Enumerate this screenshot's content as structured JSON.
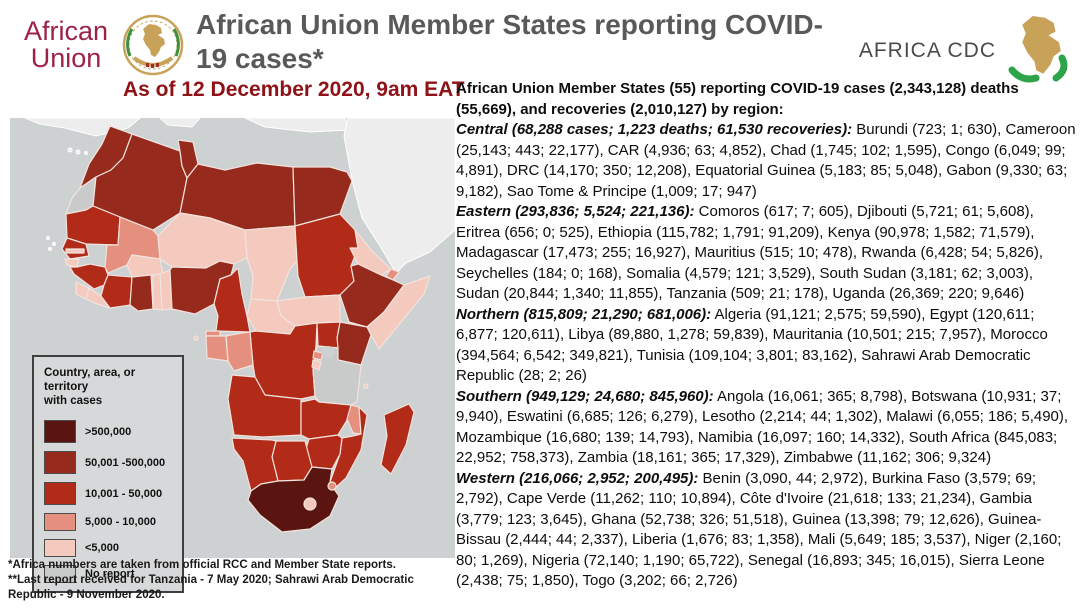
{
  "theme": {
    "title_gray": "#58595b",
    "subtitle_red": "#8e1216",
    "au_maroon": "#9e2146",
    "logo_gold": "#c8a258",
    "logo_green": "#2da44a",
    "map_ocean": "#cdd1d2",
    "map_other_land": "#ecedec",
    "map_border": "#f2e3dd"
  },
  "header": {
    "au_logo_line1": "African",
    "au_logo_line2": "Union",
    "title": "African Union Member States reporting COVID-19 cases*",
    "subtitle": "As of 12 December 2020, 9am EAT",
    "cdc_logo_text": "AFRICA CDC"
  },
  "right_panel": {
    "intro": "African Union Member States (55) reporting COVID-19 cases (2,343,128) deaths (55,669), and recoveries (2,010,127) by region:",
    "regions": [
      {
        "label": "Central (68,288 cases; 1,223 deaths; 61,530 recoveries):",
        "countries": "Burundi (723; 1; 630), Cameroon (25,143; 443; 22,177), CAR (4,936; 63; 4,852), Chad (1,745; 102; 1,595), Congo (6,049; 99; 4,891), DRC (14,170; 350; 12,208), Equatorial Guinea (5,183; 85; 5,048), Gabon (9,330; 63; 9,182), Sao Tome & Principe (1,009; 17; 947)"
      },
      {
        "label": "Eastern (293,836; 5,524; 221,136):",
        "countries": "Comoros (617; 7; 605), Djibouti (5,721; 61; 5,608), Eritrea (656; 0; 525), Ethiopia (115,782; 1,791; 91,209), Kenya (90,978; 1,582; 71,579), Madagascar (17,473; 255; 16,927), Mauritius (515; 10; 478), Rwanda (6,428; 54; 5,826), Seychelles (184; 0; 168), Somalia (4,579; 121; 3,529), South Sudan (3,181; 62; 3,003), Sudan (20,844; 1,340; 11,855), Tanzania (509; 21; 178), Uganda (26,369; 220; 9,646)"
      },
      {
        "label": "Northern (815,809; 21,290; 681,006):",
        "countries": "Algeria (91,121; 2,575; 59,590), Egypt (120,611; 6,877; 120,611), Libya (89,880, 1,278; 59,839), Mauritania (10,501; 215; 7,957), Morocco (394,564; 6,542; 349,821), Tunisia (109,104; 3,801; 83,162), Sahrawi Arab Democratic Republic (28; 2; 26)"
      },
      {
        "label": "Southern (949,129; 24,680; 845,960):",
        "countries": "Angola (16,061; 365; 8,798), Botswana (10,931; 37; 9,940), Eswatini (6,685; 126; 6,279), Lesotho (2,214; 44; 1,302), Malawi (6,055; 186; 5,490), Mozambique (16,680; 139; 14,793), Namibia (16,097; 160; 14,332), South Africa (845,083; 22,952; 758,373), Zambia (18,161; 365; 17,329), Zimbabwe (11,162; 306; 9,324)"
      },
      {
        "label": "Western (216,066; 2,952; 200,495):",
        "countries": "Benin (3,090, 44; 2,972), Burkina Faso (3,579; 69; 2,792), Cape Verde (11,262; 110; 10,894), Côte d'Ivoire (21,618; 133; 21,234), Gambia (3,779; 123; 3,645), Ghana (52,738; 326; 51,518), Guinea (13,398; 79; 12,626), Guinea-Bissau (2,444; 44; 2,337), Liberia (1,676; 83; 1,358), Mali (5,649; 185; 3,537), Niger (2,160; 80; 1,269), Nigeria (72,140; 1,190; 65,722), Senegal (16,893; 345; 16,015), Sierra Leone (2,438; 75; 1,850), Togo (3,202; 66; 2,726)"
      }
    ]
  },
  "map": {
    "legend": {
      "title_line1": "Country, area, or territory",
      "title_line2": "with cases",
      "items": [
        {
          "label": ">500,000",
          "category": "cat1",
          "color": "#5b1510"
        },
        {
          "label": "50,001 -500,000",
          "category": "cat2",
          "color": "#962b1d"
        },
        {
          "label": "10,001 - 50,000",
          "category": "cat3",
          "color": "#b22a18"
        },
        {
          "label": "5,000 - 10,000",
          "category": "cat4",
          "color": "#e5907e"
        },
        {
          "label": "<5,000",
          "category": "cat5",
          "color": "#f4cabf"
        },
        {
          "label": "No report",
          "category": "none",
          "color": "#c9cbca"
        }
      ]
    },
    "countries": [
      {
        "id": "morocco",
        "category": "cat2"
      },
      {
        "id": "western-sahara",
        "category": "none"
      },
      {
        "id": "algeria",
        "category": "cat2"
      },
      {
        "id": "tunisia",
        "category": "cat2"
      },
      {
        "id": "libya",
        "category": "cat2"
      },
      {
        "id": "egypt",
        "category": "cat2"
      },
      {
        "id": "mauritania",
        "category": "cat3"
      },
      {
        "id": "senegal",
        "category": "cat3"
      },
      {
        "id": "gambia",
        "category": "cat5"
      },
      {
        "id": "guinea-bissau",
        "category": "cat5"
      },
      {
        "id": "guinea",
        "category": "cat3"
      },
      {
        "id": "sierra-leone",
        "category": "cat5"
      },
      {
        "id": "liberia",
        "category": "cat5"
      },
      {
        "id": "mali",
        "category": "cat4"
      },
      {
        "id": "burkina-faso",
        "category": "cat5"
      },
      {
        "id": "cote-divoire",
        "category": "cat3"
      },
      {
        "id": "ghana",
        "category": "cat2"
      },
      {
        "id": "togo",
        "category": "cat5"
      },
      {
        "id": "benin",
        "category": "cat5"
      },
      {
        "id": "niger",
        "category": "cat5"
      },
      {
        "id": "nigeria",
        "category": "cat2"
      },
      {
        "id": "chad",
        "category": "cat5"
      },
      {
        "id": "sudan",
        "category": "cat3"
      },
      {
        "id": "eritrea",
        "category": "cat5"
      },
      {
        "id": "djibouti",
        "category": "cat4"
      },
      {
        "id": "ethiopia",
        "category": "cat2"
      },
      {
        "id": "somalia",
        "category": "cat5"
      },
      {
        "id": "kenya",
        "category": "cat2"
      },
      {
        "id": "uganda",
        "category": "cat3"
      },
      {
        "id": "south-sudan",
        "category": "cat5"
      },
      {
        "id": "car",
        "category": "cat5"
      },
      {
        "id": "cameroon",
        "category": "cat3"
      },
      {
        "id": "equatorial-guinea",
        "category": "cat4"
      },
      {
        "id": "gabon",
        "category": "cat4"
      },
      {
        "id": "congo",
        "category": "cat4"
      },
      {
        "id": "drc",
        "category": "cat3"
      },
      {
        "id": "rwanda",
        "category": "cat4"
      },
      {
        "id": "burundi",
        "category": "cat5"
      },
      {
        "id": "tanzania",
        "category": "none"
      },
      {
        "id": "angola",
        "category": "cat3"
      },
      {
        "id": "zambia",
        "category": "cat3"
      },
      {
        "id": "malawi",
        "category": "cat4"
      },
      {
        "id": "mozambique",
        "category": "cat3"
      },
      {
        "id": "zimbabwe",
        "category": "cat3"
      },
      {
        "id": "botswana",
        "category": "cat3"
      },
      {
        "id": "namibia",
        "category": "cat3"
      },
      {
        "id": "south-africa",
        "category": "cat1"
      },
      {
        "id": "lesotho",
        "category": "cat5"
      },
      {
        "id": "eswatini",
        "category": "cat4"
      },
      {
        "id": "madagascar",
        "category": "cat3"
      },
      {
        "id": "comoros",
        "category": "cat5"
      },
      {
        "id": "sao-tome",
        "category": "cat5"
      }
    ]
  },
  "footnotes": [
    "*Africa numbers are taken from official RCC and Member State reports.",
    "**Last report received for Tanzania - 7 May 2020; Sahrawi Arab Democratic Republic - 9 November 2020."
  ]
}
